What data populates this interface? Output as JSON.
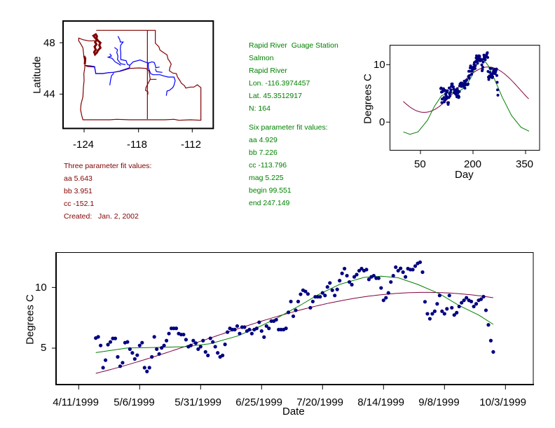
{
  "map": {
    "ylabel": "Latitude",
    "yticks": [
      "48",
      "44"
    ],
    "xticks": [
      "-124",
      "-118",
      "-112"
    ],
    "colors": {
      "border": "#800000",
      "rivers": "#0000ff"
    }
  },
  "station": {
    "lines": [
      "Rapid River  Guage Station",
      "Salmon",
      "Rapid River",
      "Lon. -116.3974457",
      "Lat. 45.3512917",
      "N: 164"
    ],
    "six_title": "Six parameter fit values:",
    "six_lines": [
      "aa 4.929",
      "bb 7.226",
      "cc -113.796",
      "mag 5.225",
      "begin 99.551",
      "end 247.149"
    ],
    "color": "#008000"
  },
  "three_param": {
    "title": "Three parameter fit values:",
    "lines": [
      "aa 5.643",
      "bb 3.951",
      "cc -152.1",
      "Created:   Jan. 2, 2002"
    ],
    "aa": 5.643,
    "bb": 3.951,
    "cc": -152.1,
    "color": "#800000"
  },
  "chart_data": [
    {
      "type": "scatter",
      "id": "day-chart",
      "xlabel": "Day",
      "ylabel": "Degrees C",
      "xticks": [
        "50",
        "200",
        "350"
      ],
      "yticks": [
        "10",
        "0"
      ],
      "xlim": [
        -50,
        390
      ],
      "ylim": [
        -5,
        13.5
      ],
      "series": [
        {
          "type": "scatter",
          "source": "observations",
          "color": "#000080"
        },
        {
          "type": "line",
          "source": "three_param_fit",
          "color": "#800040",
          "xrange": [
            1,
            360
          ]
        },
        {
          "type": "line",
          "source": "six_param_fit",
          "color": "#008000",
          "points": [
            [
              1,
              -1.71
            ],
            [
              20,
              -2.12
            ],
            [
              43,
              -1.71
            ],
            [
              70,
              0.32
            ],
            [
              90,
              2.76
            ],
            [
              110,
              4.59
            ],
            [
              130,
              5.12
            ],
            [
              157,
              5.28
            ],
            [
              177,
              6.01
            ],
            [
              197,
              8.05
            ],
            [
              213,
              10.49
            ],
            [
              230,
              10.9
            ],
            [
              243,
              9.88
            ],
            [
              263,
              7.23
            ],
            [
              283,
              4.39
            ],
            [
              310,
              1.13
            ],
            [
              337,
              -0.9
            ],
            [
              360,
              -1.59
            ]
          ]
        }
      ]
    },
    {
      "type": "scatter",
      "id": "date-chart",
      "xlabel": "Date",
      "ylabel": "Degrees C",
      "xticks": [
        "4/11/1999",
        "5/6/1999",
        "5/31/1999",
        "6/25/1999",
        "7/20/1999",
        "8/14/1999",
        "9/8/1999",
        "10/3/1999"
      ],
      "yticks": [
        "10",
        "5"
      ],
      "xlim": [
        "1999-04-02",
        "1999-10-14"
      ],
      "ylim": [
        2.0,
        13.0
      ],
      "three_param_fit_color": "#800040",
      "six_param_fit": {
        "color": "#008000",
        "points": [
          [
            "1999-04-18",
            4.63
          ],
          [
            "1999-05-01",
            5.02
          ],
          [
            "1999-05-13",
            5.06
          ],
          [
            "1999-05-25",
            5.12
          ],
          [
            "1999-06-04",
            5.37
          ],
          [
            "1999-06-15",
            5.99
          ],
          [
            "1999-06-24",
            6.76
          ],
          [
            "1999-07-01",
            7.44
          ],
          [
            "1999-07-11",
            8.55
          ],
          [
            "1999-07-18",
            9.38
          ],
          [
            "1999-07-27",
            10.25
          ],
          [
            "1999-08-06",
            10.83
          ],
          [
            "1999-08-13",
            10.93
          ],
          [
            "1999-08-20",
            10.8
          ],
          [
            "1999-08-28",
            10.25
          ],
          [
            "1999-09-06",
            9.48
          ],
          [
            "1999-09-14",
            8.51
          ],
          [
            "1999-09-22",
            7.73
          ],
          [
            "1999-09-28",
            6.96
          ]
        ]
      },
      "point_color": "#000080",
      "observations": [
        [
          "1999-04-18",
          5.83
        ],
        [
          "1999-04-19",
          5.93
        ],
        [
          "1999-04-20",
          5.22
        ],
        [
          "1999-04-21",
          3.39
        ],
        [
          "1999-04-22",
          4.01
        ],
        [
          "1999-04-23",
          5.29
        ],
        [
          "1999-04-24",
          5.51
        ],
        [
          "1999-04-25",
          5.8
        ],
        [
          "1999-04-26",
          5.8
        ],
        [
          "1999-04-27",
          4.28
        ],
        [
          "1999-04-28",
          3.51
        ],
        [
          "1999-04-29",
          3.8
        ],
        [
          "1999-04-30",
          5.45
        ],
        [
          "1999-05-01",
          5.51
        ],
        [
          "1999-05-02",
          4.92
        ],
        [
          "1999-05-03",
          4.61
        ],
        [
          "1999-05-04",
          4.11
        ],
        [
          "1999-05-05",
          4.42
        ],
        [
          "1999-05-06",
          5.22
        ],
        [
          "1999-05-07",
          5.45
        ],
        [
          "1999-05-08",
          3.39
        ],
        [
          "1999-05-09",
          3.08
        ],
        [
          "1999-05-10",
          3.39
        ],
        [
          "1999-05-11",
          4.28
        ],
        [
          "1999-05-12",
          5.93
        ],
        [
          "1999-05-13",
          4.92
        ],
        [
          "1999-05-14",
          4.52
        ],
        [
          "1999-05-15",
          5.02
        ],
        [
          "1999-05-16",
          5.22
        ],
        [
          "1999-05-17",
          5.62
        ],
        [
          "1999-05-18",
          6.2
        ],
        [
          "1999-05-19",
          6.63
        ],
        [
          "1999-05-20",
          6.63
        ],
        [
          "1999-05-21",
          6.63
        ],
        [
          "1999-05-22",
          6.2
        ],
        [
          "1999-05-23",
          6.12
        ],
        [
          "1999-05-24",
          6.12
        ],
        [
          "1999-05-25",
          5.7
        ],
        [
          "1999-05-26",
          5.12
        ],
        [
          "1999-05-27",
          5.22
        ],
        [
          "1999-05-28",
          5.62
        ],
        [
          "1999-05-29",
          5.41
        ],
        [
          "1999-05-30",
          4.92
        ],
        [
          "1999-05-31",
          5.12
        ],
        [
          "1999-06-01",
          5.62
        ],
        [
          "1999-06-02",
          4.69
        ],
        [
          "1999-06-03",
          4.4
        ],
        [
          "1999-06-04",
          5.81
        ],
        [
          "1999-06-05",
          5.51
        ],
        [
          "1999-06-06",
          5.12
        ],
        [
          "1999-06-07",
          4.61
        ],
        [
          "1999-06-08",
          4.28
        ],
        [
          "1999-06-09",
          4.4
        ],
        [
          "1999-06-10",
          5.31
        ],
        [
          "1999-06-11",
          6.32
        ],
        [
          "1999-06-12",
          6.63
        ],
        [
          "1999-06-13",
          6.53
        ],
        [
          "1999-06-14",
          6.53
        ],
        [
          "1999-06-15",
          6.82
        ],
        [
          "1999-06-16",
          6.2
        ],
        [
          "1999-06-17",
          6.73
        ],
        [
          "1999-06-18",
          6.73
        ],
        [
          "1999-06-19",
          6.41
        ],
        [
          "1999-06-20",
          6.53
        ],
        [
          "1999-06-21",
          6.2
        ],
        [
          "1999-06-22",
          6.53
        ],
        [
          "1999-06-23",
          6.63
        ],
        [
          "1999-06-24",
          7.13
        ],
        [
          "1999-06-25",
          6.41
        ],
        [
          "1999-06-26",
          5.91
        ],
        [
          "1999-06-27",
          6.82
        ],
        [
          "1999-06-28",
          6.63
        ],
        [
          "1999-06-29",
          7.23
        ],
        [
          "1999-06-30",
          7.23
        ],
        [
          "1999-07-01",
          7.34
        ],
        [
          "1999-07-02",
          6.53
        ],
        [
          "1999-07-03",
          6.53
        ],
        [
          "1999-07-04",
          6.53
        ],
        [
          "1999-07-05",
          6.63
        ],
        [
          "1999-07-06",
          7.95
        ],
        [
          "1999-07-07",
          8.84
        ],
        [
          "1999-07-08",
          7.63
        ],
        [
          "1999-07-09",
          8.12
        ],
        [
          "1999-07-10",
          8.84
        ],
        [
          "1999-07-11",
          9.44
        ],
        [
          "1999-07-12",
          9.77
        ],
        [
          "1999-07-13",
          9.67
        ],
        [
          "1999-07-14",
          9.46
        ],
        [
          "1999-07-15",
          8.33
        ],
        [
          "1999-07-16",
          8.84
        ],
        [
          "1999-07-17",
          9.23
        ],
        [
          "1999-07-18",
          9.23
        ],
        [
          "1999-07-19",
          9.23
        ],
        [
          "1999-07-20",
          9.55
        ],
        [
          "1999-07-21",
          9.34
        ],
        [
          "1999-07-22",
          10.04
        ],
        [
          "1999-07-23",
          10.37
        ],
        [
          "1999-07-24",
          9.77
        ],
        [
          "1999-07-25",
          9.34
        ],
        [
          "1999-07-26",
          9.84
        ],
        [
          "1999-07-27",
          10.56
        ],
        [
          "1999-07-28",
          11.16
        ],
        [
          "1999-07-29",
          11.55
        ],
        [
          "1999-07-30",
          10.97
        ],
        [
          "1999-07-31",
          10.45
        ],
        [
          "1999-08-01",
          10.23
        ],
        [
          "1999-08-02",
          10.87
        ],
        [
          "1999-08-03",
          11.06
        ],
        [
          "1999-08-04",
          11.38
        ],
        [
          "1999-08-05",
          11.55
        ],
        [
          "1999-08-06",
          11.38
        ],
        [
          "1999-08-07",
          11.47
        ],
        [
          "1999-08-08",
          10.66
        ],
        [
          "1999-08-09",
          10.87
        ],
        [
          "1999-08-10",
          10.97
        ],
        [
          "1999-08-11",
          10.76
        ],
        [
          "1999-08-12",
          10.76
        ],
        [
          "1999-08-13",
          9.96
        ],
        [
          "1999-08-14",
          8.94
        ],
        [
          "1999-08-15",
          9.15
        ],
        [
          "1999-08-16",
          9.55
        ],
        [
          "1999-08-17",
          10.45
        ],
        [
          "1999-08-18",
          10.97
        ],
        [
          "1999-08-19",
          11.67
        ],
        [
          "1999-08-20",
          11.38
        ],
        [
          "1999-08-21",
          11.57
        ],
        [
          "1999-08-22",
          11.26
        ],
        [
          "1999-08-23",
          10.87
        ],
        [
          "1999-08-24",
          11.55
        ],
        [
          "1999-08-25",
          11.47
        ],
        [
          "1999-08-26",
          11.47
        ],
        [
          "1999-08-27",
          11.76
        ],
        [
          "1999-08-28",
          11.98
        ],
        [
          "1999-08-29",
          12.08
        ],
        [
          "1999-08-30",
          11.26
        ],
        [
          "1999-08-31",
          8.82
        ],
        [
          "1999-09-01",
          7.83
        ],
        [
          "1999-09-02",
          7.42
        ],
        [
          "1999-09-03",
          7.83
        ],
        [
          "1999-09-04",
          8.04
        ],
        [
          "1999-09-05",
          8.65
        ],
        [
          "1999-09-06",
          9.34
        ],
        [
          "1999-09-07",
          8.04
        ],
        [
          "1999-09-08",
          7.83
        ],
        [
          "1999-09-09",
          8.24
        ],
        [
          "1999-09-10",
          9.34
        ],
        [
          "1999-09-11",
          8.33
        ],
        [
          "1999-09-12",
          7.73
        ],
        [
          "1999-09-13",
          7.92
        ],
        [
          "1999-09-14",
          8.43
        ],
        [
          "1999-09-15",
          8.74
        ],
        [
          "1999-09-16",
          8.94
        ],
        [
          "1999-09-17",
          9.15
        ],
        [
          "1999-09-18",
          8.94
        ],
        [
          "1999-09-19",
          8.84
        ],
        [
          "1999-09-20",
          8.43
        ],
        [
          "1999-09-21",
          8.65
        ],
        [
          "1999-09-22",
          8.94
        ],
        [
          "1999-09-23",
          9.03
        ],
        [
          "1999-09-24",
          9.24
        ],
        [
          "1999-09-25",
          8.12
        ],
        [
          "1999-09-26",
          6.92
        ],
        [
          "1999-09-27",
          5.62
        ],
        [
          "1999-09-28",
          4.69
        ]
      ]
    }
  ]
}
